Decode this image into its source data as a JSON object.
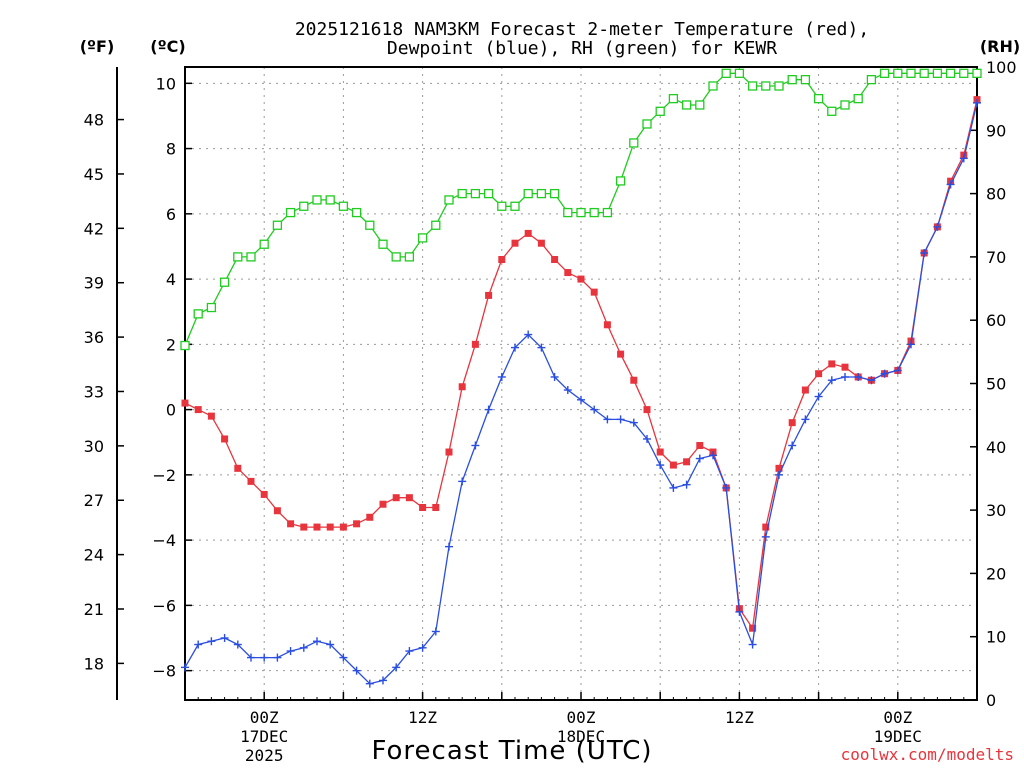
{
  "chart_data": {
    "type": "line",
    "title_line1": "2025121618 NAM3KM Forecast 2-meter Temperature (red),",
    "title_line2": "Dewpoint (blue), RH (green) for KEWR",
    "xlabel": "Forecast Time (UTC)",
    "credit": "coolwx.com/modelts",
    "unit_labels": {
      "fahrenheit": "(ºF)",
      "celsius": "(ºC)",
      "rh": "(RH)"
    },
    "x_hours": [
      0,
      1,
      2,
      3,
      4,
      5,
      6,
      7,
      8,
      9,
      10,
      11,
      12,
      13,
      14,
      15,
      16,
      17,
      18,
      19,
      20,
      21,
      22,
      23,
      24,
      25,
      26,
      27,
      28,
      29,
      30,
      31,
      32,
      33,
      34,
      35,
      36,
      37,
      38,
      39,
      40,
      41,
      42,
      43,
      44,
      45,
      46,
      47,
      48,
      49,
      50,
      51,
      52,
      53,
      54,
      55,
      56,
      57,
      58,
      59,
      60
    ],
    "xlim": [
      0,
      60
    ],
    "ylim_c": [
      -8.9,
      10.5
    ],
    "ylim_rh": [
      0,
      100
    ],
    "y_ticks_c": [
      10,
      8,
      6,
      4,
      2,
      0,
      -2,
      -4,
      -6,
      -8
    ],
    "y_ticks_f": [
      48,
      45,
      42,
      39,
      36,
      33,
      30,
      27,
      24,
      21,
      18
    ],
    "y_ticks_rh": [
      100,
      90,
      80,
      70,
      60,
      50,
      40,
      30,
      20,
      10,
      0
    ],
    "x_ticks": [
      {
        "hour": 6,
        "label": "00Z",
        "date": "17DEC",
        "year": "2025"
      },
      {
        "hour": 18,
        "label": "12Z",
        "date": "",
        "year": ""
      },
      {
        "hour": 30,
        "label": "00Z",
        "date": "18DEC",
        "year": ""
      },
      {
        "hour": 42,
        "label": "12Z",
        "date": "",
        "year": ""
      },
      {
        "hour": 54,
        "label": "00Z",
        "date": "19DEC",
        "year": ""
      }
    ],
    "series": [
      {
        "name": "2-meter Temperature",
        "unit": "C",
        "color": "#e8343c",
        "marker": "filled-square",
        "values": [
          0.2,
          0.0,
          -0.2,
          -0.9,
          -1.8,
          -2.2,
          -2.6,
          -3.1,
          -3.5,
          -3.6,
          -3.6,
          -3.6,
          -3.6,
          -3.5,
          -3.3,
          -2.9,
          -2.7,
          -2.7,
          -3.0,
          -3.0,
          -1.3,
          0.7,
          2.0,
          3.5,
          4.6,
          5.1,
          5.4,
          5.1,
          4.6,
          4.2,
          4.0,
          3.6,
          2.6,
          1.7,
          0.9,
          0.0,
          -1.3,
          -1.7,
          -1.6,
          -1.1,
          -1.3,
          -2.4,
          -6.1,
          -6.7,
          -3.6,
          -1.8,
          -0.4,
          0.6,
          1.1,
          1.4,
          1.3,
          1.0,
          0.9,
          1.1,
          1.2,
          2.1,
          4.8,
          5.6,
          7.0,
          7.8,
          9.5
        ]
      },
      {
        "name": "Dewpoint",
        "unit": "C",
        "color": "#2a4ee0",
        "marker": "plus",
        "values": [
          -7.9,
          -7.2,
          -7.1,
          -7.0,
          -7.2,
          -7.6,
          -7.6,
          -7.6,
          -7.4,
          -7.3,
          -7.1,
          -7.2,
          -7.6,
          -8.0,
          -8.4,
          -8.3,
          -7.9,
          -7.4,
          -7.3,
          -6.8,
          -4.2,
          -2.2,
          -1.1,
          0.0,
          1.0,
          1.9,
          2.3,
          1.9,
          1.0,
          0.6,
          0.3,
          0.0,
          -0.3,
          -0.3,
          -0.4,
          -0.9,
          -1.7,
          -2.4,
          -2.3,
          -1.5,
          -1.4,
          -2.4,
          -6.2,
          -7.2,
          -3.9,
          -2.0,
          -1.1,
          -0.3,
          0.4,
          0.9,
          1.0,
          1.0,
          0.9,
          1.1,
          1.2,
          2.0,
          4.8,
          5.6,
          6.9,
          7.7,
          9.4
        ]
      },
      {
        "name": "RH",
        "unit": "%",
        "color": "#1fcc1f",
        "marker": "open-square",
        "values": [
          56,
          61,
          62,
          66,
          70,
          70,
          72,
          75,
          77,
          78,
          79,
          79,
          78,
          77,
          75,
          72,
          70,
          70,
          73,
          75,
          79,
          80,
          80,
          80,
          78,
          78,
          80,
          80,
          80,
          77,
          77,
          77,
          77,
          82,
          88,
          91,
          93,
          95,
          94,
          94,
          97,
          99,
          99,
          97,
          97,
          97,
          98,
          98,
          95,
          93,
          94,
          95,
          98,
          99,
          99,
          99,
          99,
          99,
          99,
          99,
          99
        ]
      }
    ]
  }
}
